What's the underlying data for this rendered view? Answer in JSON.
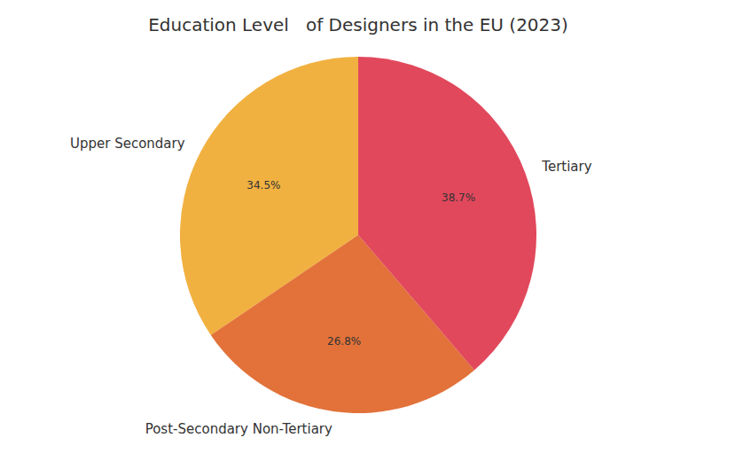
{
  "chart_data": {
    "type": "pie",
    "title": "Education Level   of Designers in the EU (2023)",
    "categories": [
      "Upper Secondary",
      "Post-Secondary Non-Tertiary",
      "Tertiary"
    ],
    "values": [
      34.5,
      26.8,
      38.7
    ],
    "value_labels": [
      "34.5%",
      "26.8%",
      "38.7%"
    ],
    "colors": [
      "#f1b141",
      "#e2723a",
      "#e1485c"
    ],
    "data_labels": true
  }
}
